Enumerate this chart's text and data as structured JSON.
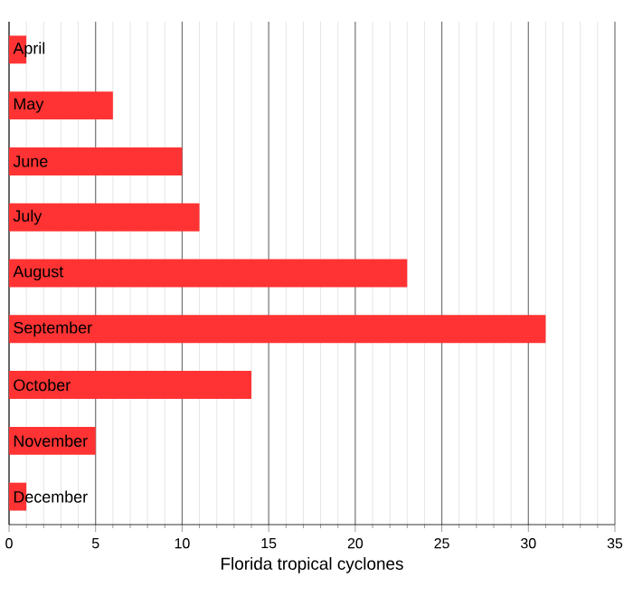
{
  "chart_data": {
    "type": "bar",
    "orientation": "horizontal",
    "xlabel": "Florida tropical cyclones",
    "categories": [
      "April",
      "May",
      "June",
      "July",
      "August",
      "September",
      "October",
      "November",
      "December"
    ],
    "values": [
      1,
      6,
      10,
      11,
      23,
      31,
      14,
      5,
      1
    ],
    "color": "#ff3333",
    "xlim": [
      0,
      35
    ],
    "xticks": [
      0,
      5,
      10,
      15,
      20,
      25,
      30,
      35
    ],
    "grid": "x"
  }
}
